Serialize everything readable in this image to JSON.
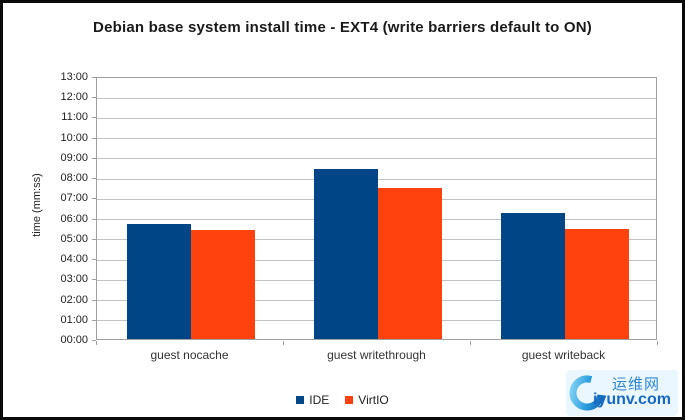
{
  "page": {
    "title": "Debian base system install time - EXT4 (write barriers default to ON)"
  },
  "colors": {
    "ide_blue": "#004586",
    "virtio_orange": "#FF420E",
    "gridline": "#c2c2c2",
    "axis": "#9f9f9f",
    "text": "#222222",
    "watermark_blue": "#1668c4"
  },
  "chart_data": {
    "type": "bar",
    "title": "Debian base system install time - EXT4 (write barriers default to ON)",
    "categories": [
      "guest nocache",
      "guest writethrough",
      "guest writeback"
    ],
    "series": [
      {
        "name": "IDE",
        "color": "#004586",
        "values_mmss": [
          "05:42",
          "08:25",
          "06:13"
        ],
        "values_seconds": [
          342,
          505,
          373
        ]
      },
      {
        "name": "VirtIO",
        "color": "#FF420E",
        "values_mmss": [
          "05:22",
          "07:28",
          "05:26"
        ],
        "values_seconds": [
          322,
          448,
          326
        ]
      }
    ],
    "xlabel": "",
    "ylabel": "time (mm:ss)",
    "y_axis": {
      "min_seconds": 0,
      "max_seconds": 780,
      "tick_interval_seconds": 60,
      "tick_labels": [
        "00:00",
        "01:00",
        "02:00",
        "03:00",
        "04:00",
        "05:00",
        "06:00",
        "07:00",
        "08:00",
        "09:00",
        "10:00",
        "11:00",
        "12:00",
        "13:00"
      ]
    },
    "grid": "horizontal",
    "legend_position": "bottom-center"
  },
  "legend": {
    "items": [
      "IDE",
      "VirtIO"
    ]
  },
  "watermark": {
    "site_name": "运维网",
    "site_url": "iyunv.com"
  }
}
